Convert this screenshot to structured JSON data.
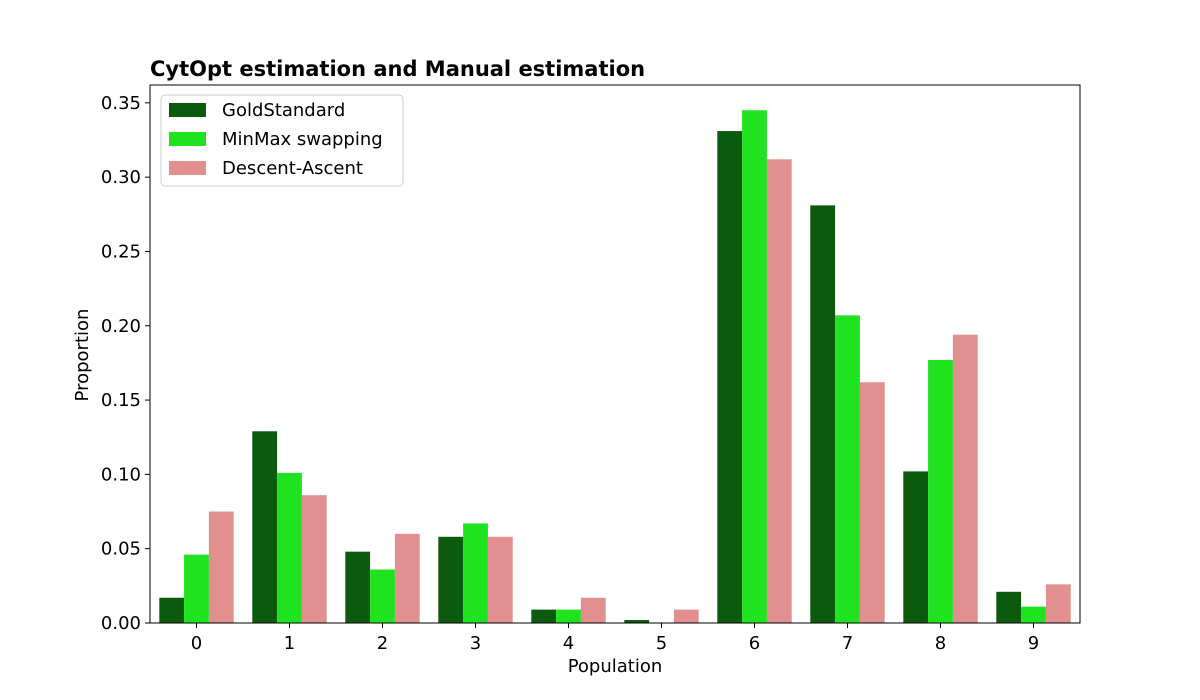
{
  "chart_data": {
    "type": "bar",
    "title": "CytOpt estimation and Manual estimation",
    "xlabel": "Population",
    "ylabel": "Proportion",
    "categories": [
      "0",
      "1",
      "2",
      "3",
      "4",
      "5",
      "6",
      "7",
      "8",
      "9"
    ],
    "ylim": [
      0,
      0.362
    ],
    "yticks": [
      "0.00",
      "0.05",
      "0.10",
      "0.15",
      "0.20",
      "0.25",
      "0.30",
      "0.35"
    ],
    "grid": false,
    "legend_position": "top-left",
    "series": [
      {
        "name": "GoldStandard",
        "color": "#0b5a0e",
        "values": [
          0.017,
          0.129,
          0.048,
          0.058,
          0.009,
          0.002,
          0.331,
          0.281,
          0.102,
          0.021
        ]
      },
      {
        "name": "MinMax swapping",
        "color": "#1fe31f",
        "values": [
          0.046,
          0.101,
          0.036,
          0.067,
          0.009,
          0.0,
          0.345,
          0.207,
          0.177,
          0.011
        ]
      },
      {
        "name": "Descent-Ascent",
        "color": "#e28f8f",
        "values": [
          0.075,
          0.086,
          0.06,
          0.058,
          0.017,
          0.009,
          0.312,
          0.162,
          0.194,
          0.026
        ]
      }
    ]
  }
}
